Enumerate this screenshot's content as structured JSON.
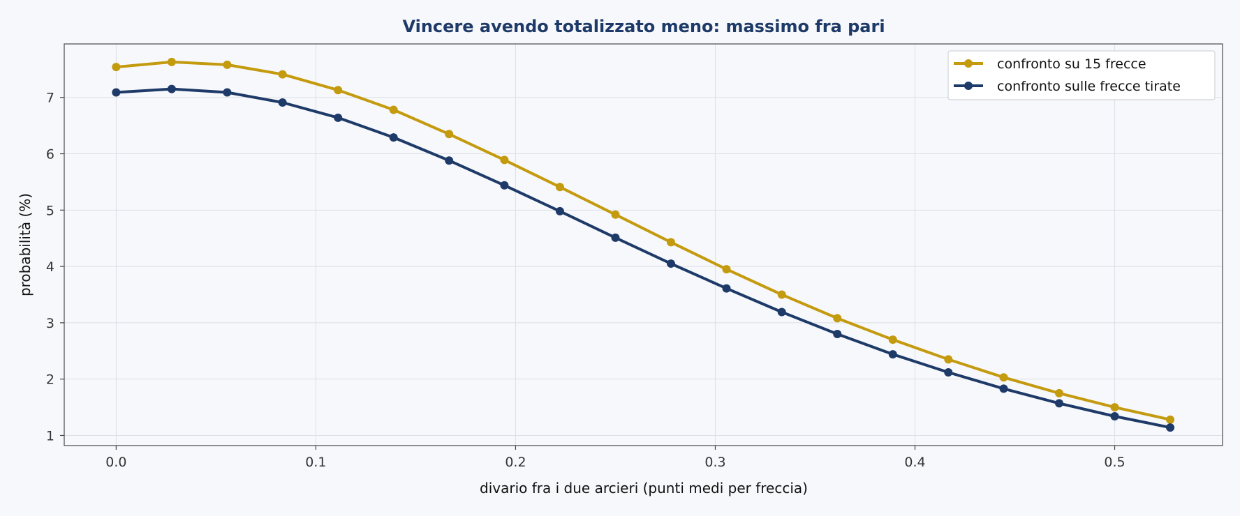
{
  "chart_data": {
    "type": "line",
    "title": "Vincere avendo totalizzato meno: massimo fra pari",
    "xlabel": "divario fra i due arcieri (punti medi per freccia)",
    "ylabel": "probabilità (%)",
    "xlim": [
      -0.026,
      0.554
    ],
    "ylim": [
      0.82,
      7.95
    ],
    "x_ticks": [
      0.0,
      0.1,
      0.2,
      0.3,
      0.4,
      0.5
    ],
    "x_tick_labels": [
      "0.0",
      "0.1",
      "0.2",
      "0.3",
      "0.4",
      "0.5"
    ],
    "y_ticks": [
      1,
      2,
      3,
      4,
      5,
      6,
      7
    ],
    "y_tick_labels": [
      "1",
      "2",
      "3",
      "4",
      "5",
      "6",
      "7"
    ],
    "grid": true,
    "legend_position": "top-right",
    "x": [
      0.0,
      0.0278,
      0.0556,
      0.0833,
      0.1111,
      0.1389,
      0.1667,
      0.1944,
      0.2222,
      0.25,
      0.2778,
      0.3056,
      0.3333,
      0.3611,
      0.3889,
      0.4167,
      0.4444,
      0.4722,
      0.5,
      0.5278
    ],
    "series": [
      {
        "name": "confronto su 15 frecce",
        "color": "#c49a0e",
        "values": [
          7.54,
          7.63,
          7.58,
          7.41,
          7.13,
          6.78,
          6.35,
          5.89,
          5.41,
          4.92,
          4.43,
          3.95,
          3.5,
          3.08,
          2.7,
          2.35,
          2.03,
          1.75,
          1.5,
          1.28
        ]
      },
      {
        "name": "confronto sulle frecce tirate",
        "color": "#1e3a68",
        "values": [
          7.09,
          7.15,
          7.09,
          6.91,
          6.64,
          6.29,
          5.88,
          5.44,
          4.98,
          4.51,
          4.05,
          3.61,
          3.19,
          2.8,
          2.44,
          2.12,
          1.83,
          1.57,
          1.34,
          1.14
        ]
      }
    ]
  }
}
